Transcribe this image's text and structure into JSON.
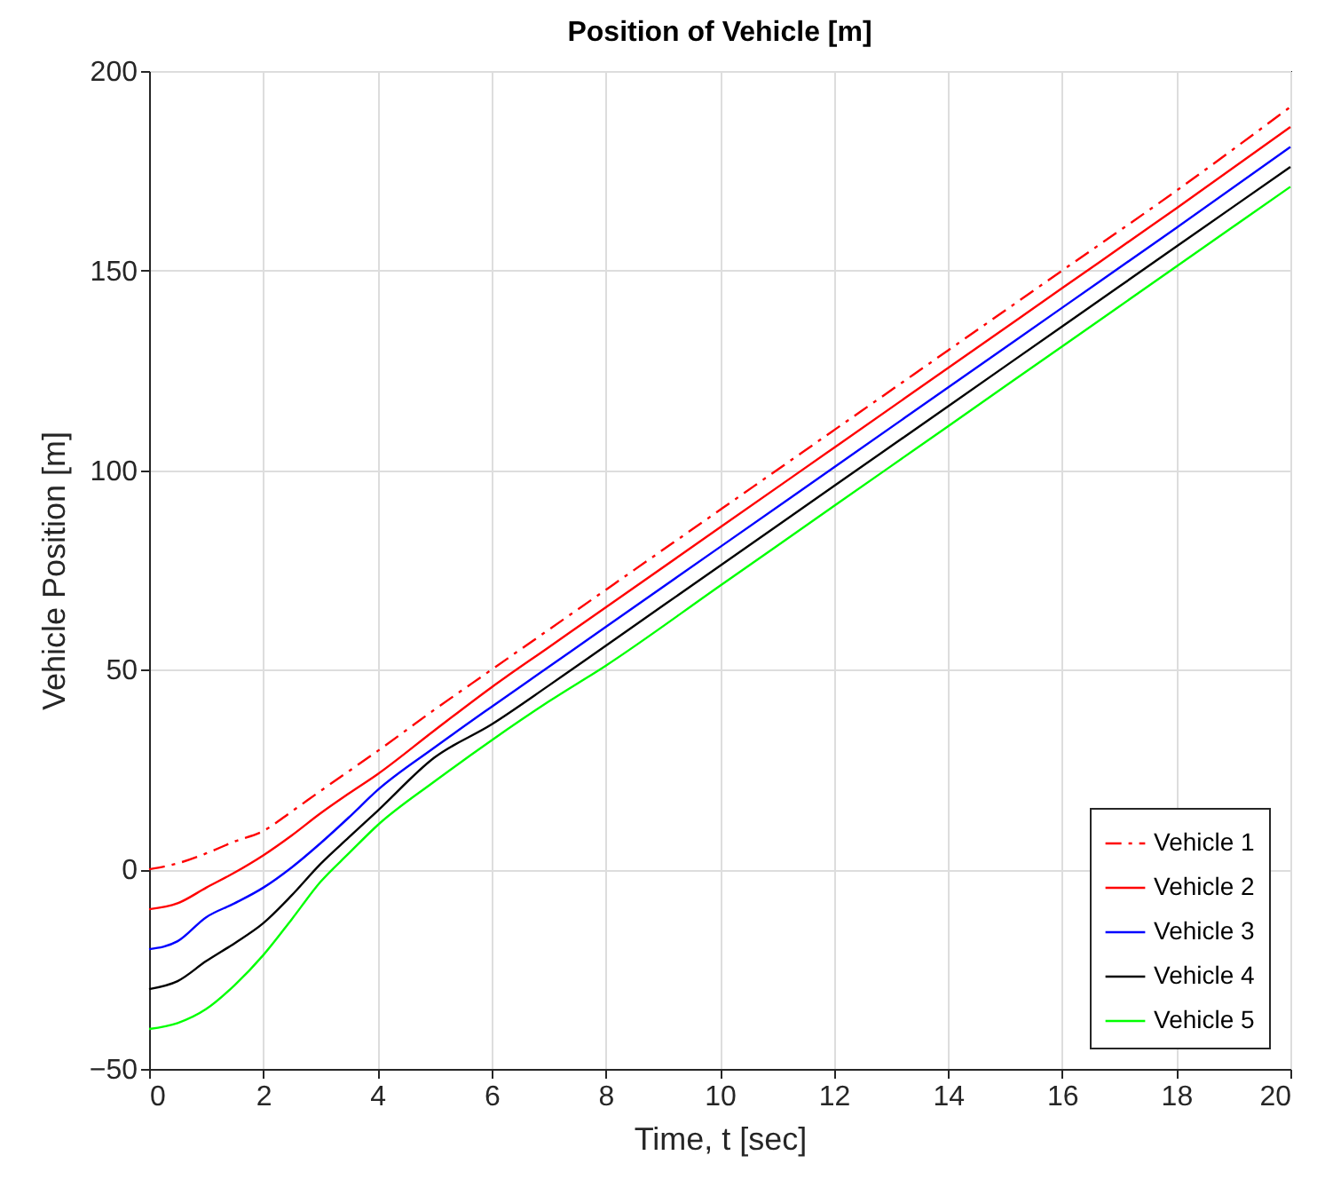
{
  "chart_data": {
    "type": "line",
    "title": "Position of Vehicle [m]",
    "xlabel": "Time, t [sec]",
    "ylabel": "Vehicle Position [m]",
    "x": [
      0,
      0.5,
      1,
      1.5,
      2,
      2.5,
      3,
      3.5,
      4,
      5,
      6,
      7,
      8,
      10,
      12,
      14,
      16,
      18,
      20
    ],
    "series": [
      {
        "name": "Vehicle 1",
        "color": "#ff0000",
        "line_style": "dashdot",
        "values": [
          0,
          1.5,
          4,
          7,
          9.6,
          14.5,
          19.6,
          24.6,
          29.6,
          40,
          50,
          60,
          70,
          90,
          110,
          130,
          150,
          170,
          191
        ]
      },
      {
        "name": "Vehicle 2",
        "color": "#ff0000",
        "line_style": "solid",
        "values": [
          -10,
          -8.5,
          -4.6,
          -0.8,
          3.5,
          8.5,
          14,
          19,
          23.8,
          34.8,
          45.6,
          55.6,
          65.6,
          85.6,
          105.6,
          125.6,
          145.6,
          165.6,
          186
        ]
      },
      {
        "name": "Vehicle 3",
        "color": "#0000ff",
        "line_style": "solid",
        "values": [
          -20,
          -18,
          -12,
          -8.5,
          -4.6,
          0.5,
          6.5,
          13,
          19.8,
          30.5,
          40.7,
          50.7,
          60.7,
          80.7,
          100.7,
          120.7,
          140.7,
          160.7,
          181
        ]
      },
      {
        "name": "Vehicle 4",
        "color": "#000000",
        "line_style": "solid",
        "values": [
          -30,
          -28,
          -23,
          -18.5,
          -13.5,
          -6.5,
          1.3,
          8,
          14.6,
          28,
          36.3,
          46,
          56,
          76,
          96,
          116,
          136,
          156,
          176
        ]
      },
      {
        "name": "Vehicle 5",
        "color": "#00ff00",
        "line_style": "solid",
        "values": [
          -40,
          -38.5,
          -35,
          -29,
          -21.5,
          -12.5,
          -3.2,
          4,
          11,
          22,
          32.3,
          42,
          51,
          71,
          91,
          111,
          131,
          151,
          171
        ]
      }
    ],
    "xlim": [
      0,
      20
    ],
    "xticks": [
      0,
      2,
      4,
      6,
      8,
      10,
      12,
      14,
      16,
      18,
      20
    ],
    "ylim": [
      -50,
      200
    ],
    "yticks": [
      -50,
      0,
      50,
      100,
      150,
      200
    ],
    "grid": true,
    "legend": "bottom right",
    "marker": "none"
  }
}
